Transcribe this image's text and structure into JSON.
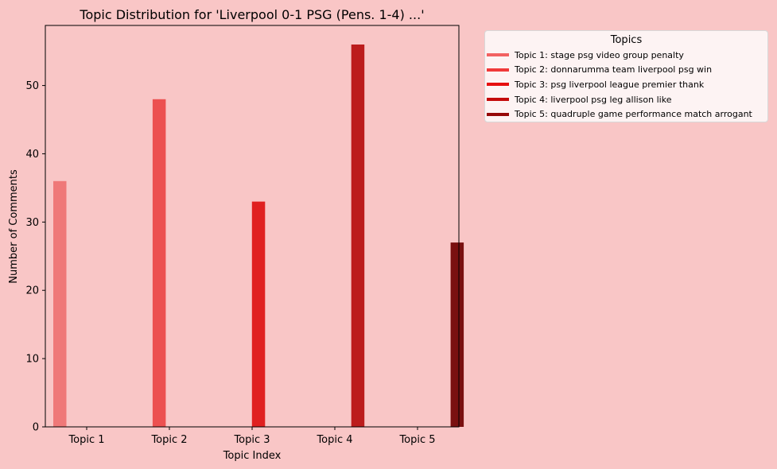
{
  "chart_data": {
    "type": "bar",
    "title": "Topic Distribution for 'Liverpool 0-1 PSG (Pens. 1-4) ...'",
    "xlabel": "Topic Index",
    "ylabel": "Number of Comments",
    "categories": [
      "Topic 1",
      "Topic 2",
      "Topic 3",
      "Topic 4",
      "Topic 5"
    ],
    "values": [
      36,
      48,
      33,
      56,
      27
    ],
    "ylim": [
      0,
      58.8
    ],
    "yticks": [
      "0",
      "10",
      "20",
      "30",
      "40",
      "50"
    ],
    "grid": false,
    "legend_placement": "outside-top-right",
    "colors": [
      "#ef7878",
      "#ec5050",
      "#e02020",
      "#bc1c1c",
      "#7a1010"
    ],
    "legend": {
      "title": "Topics",
      "entries": [
        {
          "label": "Topic 1: stage psg video group penalty",
          "color": "#f26262"
        },
        {
          "label": "Topic 2: donnarumma team liverpool psg win",
          "color": "#f03a3a"
        },
        {
          "label": "Topic 3: psg liverpool league premier thank",
          "color": "#e60f0f"
        },
        {
          "label": "Topic 4: liverpool psg leg allison like",
          "color": "#c40a0a"
        },
        {
          "label": "Topic 5: quadruple game performance match arrogant",
          "color": "#960808"
        }
      ]
    }
  }
}
